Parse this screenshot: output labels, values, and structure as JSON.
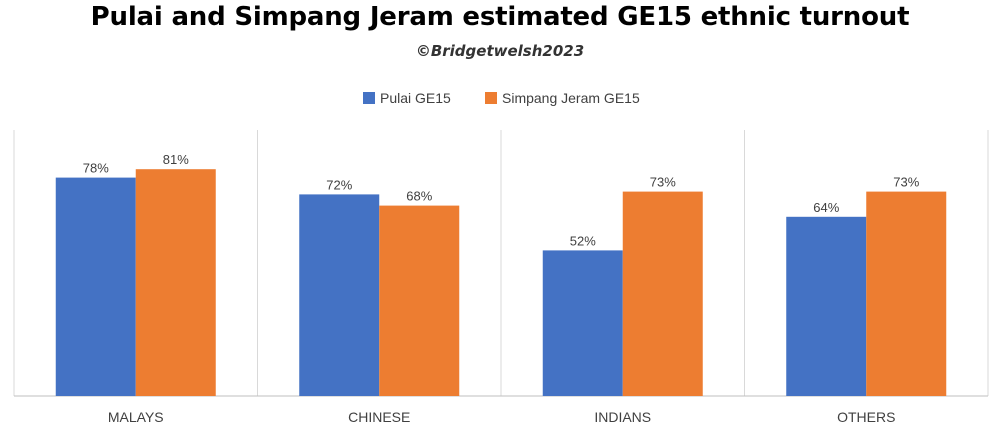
{
  "header": {
    "title": "Pulai and Simpang Jeram estimated GE15 ethnic turnout",
    "subtitle": "©Bridgetwelsh2023"
  },
  "chart_data": {
    "type": "bar",
    "categories": [
      "MALAYS",
      "CHINESE",
      "INDIANS",
      "OTHERS"
    ],
    "series": [
      {
        "name": "Pulai GE15",
        "values": [
          78,
          72,
          52,
          64
        ],
        "labels": [
          "78%",
          "72%",
          "52%",
          "64%"
        ],
        "color": "#4472C4"
      },
      {
        "name": "Simpang Jeram GE15",
        "values": [
          81,
          68,
          73,
          73
        ],
        "labels": [
          "81%",
          "68%",
          "73%",
          "73%"
        ],
        "color": "#ED7D31"
      }
    ],
    "ylim": [
      0,
      100
    ],
    "grid": false,
    "legend_position": "top-center",
    "title": "",
    "xlabel": "",
    "ylabel": ""
  }
}
